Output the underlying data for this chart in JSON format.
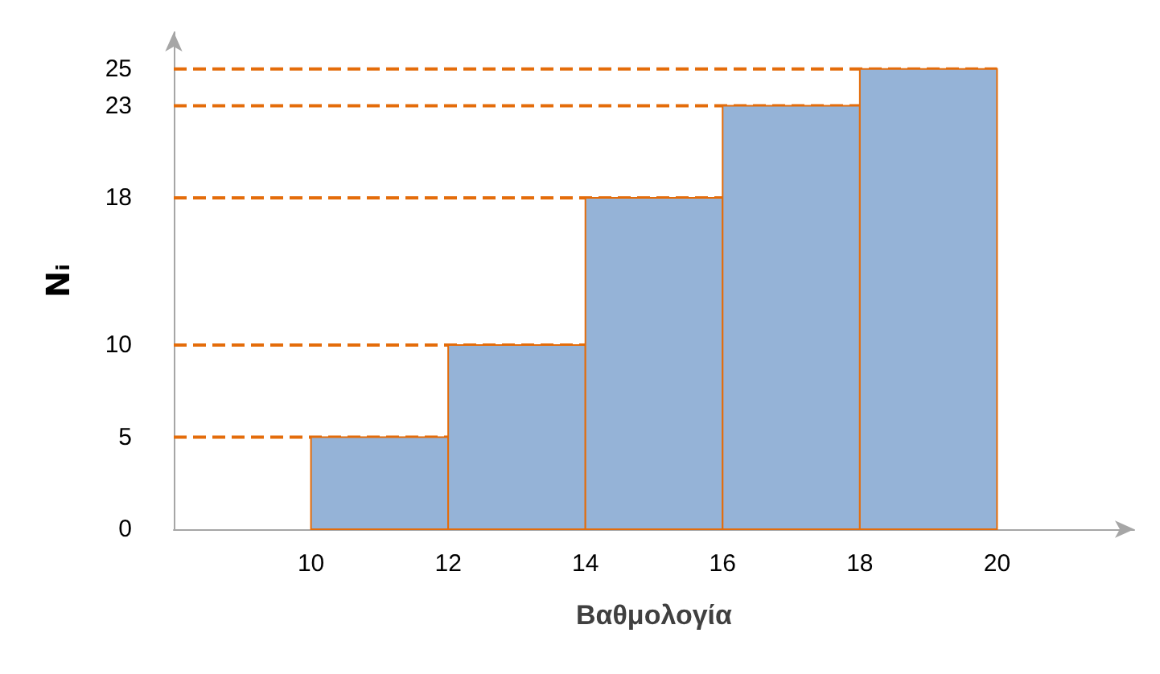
{
  "chart_data": {
    "type": "histogram",
    "xlabel": "Βαθμολογία",
    "ylabel": "Nᵢ",
    "bins": [
      10,
      12,
      14,
      16,
      18,
      20
    ],
    "values": [
      5,
      10,
      18,
      23,
      25
    ],
    "color": "#95b3d7",
    "xlim": [
      8,
      22
    ],
    "xticks": [
      10,
      12,
      14,
      16,
      18,
      20
    ],
    "ylim": [
      0,
      27
    ],
    "yticks": [
      0,
      5,
      10,
      18,
      23,
      25
    ],
    "grid": false,
    "ref_lines": [
      {
        "axis": "y",
        "value": 5,
        "color": "#e46c0a",
        "line_style": "dashed"
      },
      {
        "axis": "y",
        "value": 10,
        "color": "#e46c0a",
        "line_style": "dashed"
      },
      {
        "axis": "y",
        "value": 18,
        "color": "#e46c0a",
        "line_style": "dashed"
      },
      {
        "axis": "y",
        "value": 23,
        "color": "#e46c0a",
        "line_style": "dashed"
      },
      {
        "axis": "y",
        "value": 25,
        "color": "#e46c0a",
        "line_style": "dashed"
      }
    ]
  }
}
